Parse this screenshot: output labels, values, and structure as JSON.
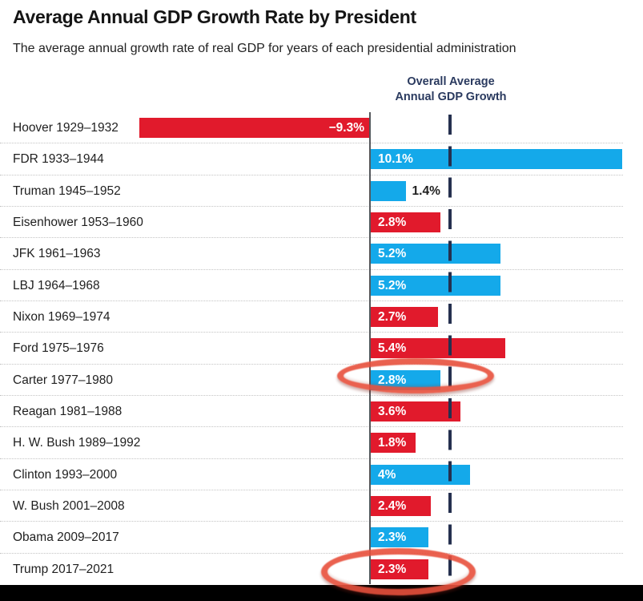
{
  "page": {
    "title": "Average Annual GDP Growth Rate by President",
    "subtitle": "The average annual growth rate of real GDP for years of each presidential administration"
  },
  "chart_data": {
    "type": "bar",
    "orientation": "horizontal",
    "title": "Average Annual GDP Growth Rate by President",
    "unit": "percent",
    "xlim": [
      -9.5,
      10.2
    ],
    "grid": "dotted-row-separators",
    "legend": "none",
    "reference_line": {
      "label_lines": [
        "Overall Average",
        "Annual GDP Growth"
      ],
      "value_percent": 3.2,
      "style": "vertical-dashed"
    },
    "colors": {
      "democrat_bar": "#14A9EA",
      "republican_bar": "#E11A2C",
      "reference_line": "#25304F",
      "axis_line": "#55585C",
      "highlight_ellipse": "#E8503C",
      "inside_label_text": "#FFFFFF"
    },
    "presidents": [
      {
        "label": "Hoover 1929–1932",
        "value": -9.3,
        "value_label": "−9.3%",
        "party": "republican",
        "highlighted": false
      },
      {
        "label": "FDR 1933–1944",
        "value": 10.1,
        "value_label": "10.1%",
        "party": "democrat",
        "highlighted": false
      },
      {
        "label": "Truman 1945–1952",
        "value": 1.4,
        "value_label": "1.4%",
        "party": "democrat",
        "highlighted": false
      },
      {
        "label": "Eisenhower 1953–1960",
        "value": 2.8,
        "value_label": "2.8%",
        "party": "republican",
        "highlighted": false
      },
      {
        "label": "JFK 1961–1963",
        "value": 5.2,
        "value_label": "5.2%",
        "party": "democrat",
        "highlighted": false
      },
      {
        "label": "LBJ 1964–1968",
        "value": 5.2,
        "value_label": "5.2%",
        "party": "democrat",
        "highlighted": false
      },
      {
        "label": "Nixon 1969–1974",
        "value": 2.7,
        "value_label": "2.7%",
        "party": "republican",
        "highlighted": false
      },
      {
        "label": "Ford 1975–1976",
        "value": 5.4,
        "value_label": "5.4%",
        "party": "republican",
        "highlighted": false
      },
      {
        "label": "Carter 1977–1980",
        "value": 2.8,
        "value_label": "2.8%",
        "party": "democrat",
        "highlighted": true
      },
      {
        "label": "Reagan 1981–1988",
        "value": 3.6,
        "value_label": "3.6%",
        "party": "republican",
        "highlighted": false
      },
      {
        "label": "H. W. Bush 1989–1992",
        "value": 1.8,
        "value_label": "1.8%",
        "party": "republican",
        "highlighted": false
      },
      {
        "label": "Clinton 1993–2000",
        "value": 4.0,
        "value_label": "4%",
        "party": "democrat",
        "highlighted": false
      },
      {
        "label": "W. Bush 2001–2008",
        "value": 2.4,
        "value_label": "2.4%",
        "party": "republican",
        "highlighted": false
      },
      {
        "label": "Obama 2009–2017",
        "value": 2.3,
        "value_label": "2.3%",
        "party": "democrat",
        "highlighted": false
      },
      {
        "label": "Trump 2017–2021",
        "value": 2.3,
        "value_label": "2.3%",
        "party": "republican",
        "highlighted": true
      }
    ]
  }
}
